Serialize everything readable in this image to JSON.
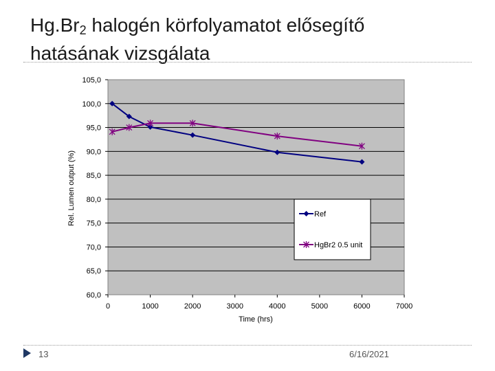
{
  "slide": {
    "title_main": "Hg.Br",
    "title_sub": "2",
    "title_rest": " halogén körfolyamatot elősegítő",
    "title_line2": "hatásának vizsgálata",
    "page_number": "13",
    "date": "6/16/2021"
  },
  "chart_data": {
    "type": "line",
    "title": "",
    "xlabel": "Time (hrs)",
    "ylabel": "Rel. Lumen output (%)",
    "xlim": [
      0,
      7000
    ],
    "ylim": [
      60,
      105
    ],
    "xticks": [
      0,
      1000,
      2000,
      3000,
      4000,
      5000,
      6000,
      7000
    ],
    "xtick_labels": [
      "0",
      "1000",
      "2000",
      "3000",
      "4000",
      "5000",
      "6000",
      "7000"
    ],
    "yticks": [
      60,
      65,
      70,
      75,
      80,
      85,
      90,
      95,
      100,
      105
    ],
    "ytick_labels": [
      "60,0",
      "65,0",
      "70,0",
      "75,0",
      "80,0",
      "85,0",
      "90,0",
      "95,0",
      "100,0",
      "105,0"
    ],
    "grid": "horizontal",
    "plot_background": "#c0c0c0",
    "legend_position": "lower-right",
    "series": [
      {
        "name": "Ref",
        "color": "#000080",
        "marker": "diamond",
        "x": [
          100,
          500,
          1000,
          2000,
          4000,
          6000
        ],
        "y": [
          100.0,
          97.3,
          95.1,
          93.4,
          89.8,
          87.8
        ]
      },
      {
        "name": "HgBr2 0.5 unit",
        "color": "#800080",
        "marker": "star",
        "x": [
          100,
          500,
          1000,
          2000,
          4000,
          6000
        ],
        "y": [
          94.1,
          95.0,
          95.9,
          95.9,
          93.2,
          91.1
        ]
      }
    ]
  }
}
